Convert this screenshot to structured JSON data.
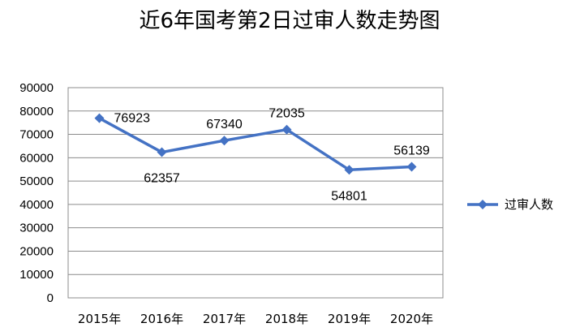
{
  "chart_data": {
    "type": "line",
    "title": "近6年国考第2日过审人数走势图",
    "categories": [
      "2015年",
      "2016年",
      "2017年",
      "2018年",
      "2019年",
      "2020年"
    ],
    "series": [
      {
        "name": "过审人数",
        "values": [
          76923,
          62357,
          67340,
          72035,
          54801,
          56139
        ],
        "color": "#4472C4"
      }
    ],
    "ylim": [
      0,
      90000
    ],
    "yticks": [
      0,
      10000,
      20000,
      30000,
      40000,
      50000,
      60000,
      70000,
      80000,
      90000
    ],
    "grid": true,
    "legend_position": "right",
    "marker": "diamond"
  }
}
